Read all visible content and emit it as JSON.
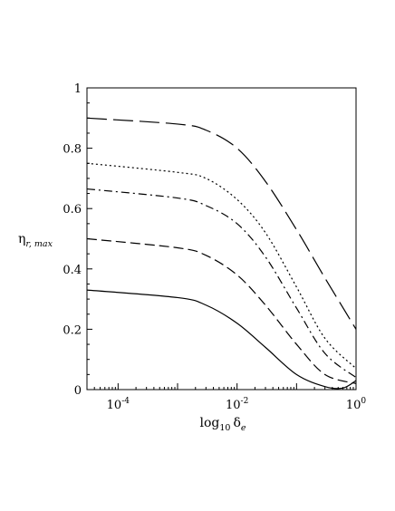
{
  "chart_data": {
    "type": "line",
    "xlabel": "log10 δe",
    "xlabel_parts": {
      "base": "log",
      "base_sub": "10",
      "symbol": "δ",
      "symbol_sub": "e"
    },
    "ylabel": "ηr, max",
    "ylabel_parts": {
      "symbol": "η",
      "sub": "r, max"
    },
    "x_scale": "log",
    "xlim": [
      3e-05,
      1.0
    ],
    "ylim": [
      0,
      1
    ],
    "x_ticks": [
      {
        "value": 0.0001,
        "base": "10",
        "exp": "-4"
      },
      {
        "value": 0.01,
        "base": "10",
        "exp": "-2"
      },
      {
        "value": 1,
        "base": "10",
        "exp": "0"
      }
    ],
    "y_ticks": [
      "0",
      "0.2",
      "0.4",
      "0.6",
      "0.8",
      "1"
    ],
    "grid": false,
    "legend": "none",
    "series": [
      {
        "style": "long-dash",
        "x": [
          3e-05,
          0.001,
          0.003,
          0.01,
          0.03,
          0.1,
          0.3,
          1.0
        ],
        "y": [
          0.9,
          0.88,
          0.86,
          0.8,
          0.69,
          0.53,
          0.37,
          0.2
        ]
      },
      {
        "style": "dotted",
        "x": [
          3e-05,
          0.001,
          0.003,
          0.01,
          0.03,
          0.1,
          0.3,
          1.0
        ],
        "y": [
          0.75,
          0.72,
          0.7,
          0.63,
          0.52,
          0.34,
          0.17,
          0.07
        ]
      },
      {
        "style": "dash-dot",
        "x": [
          3e-05,
          0.001,
          0.003,
          0.01,
          0.03,
          0.1,
          0.3,
          1.0
        ],
        "y": [
          0.665,
          0.635,
          0.61,
          0.55,
          0.44,
          0.27,
          0.12,
          0.04
        ]
      },
      {
        "style": "dashed",
        "x": [
          3e-05,
          0.001,
          0.003,
          0.01,
          0.03,
          0.1,
          0.3,
          1.0
        ],
        "y": [
          0.5,
          0.47,
          0.445,
          0.38,
          0.28,
          0.15,
          0.05,
          0.02
        ]
      },
      {
        "style": "solid",
        "x": [
          3e-05,
          0.001,
          0.003,
          0.01,
          0.03,
          0.1,
          0.3,
          0.6,
          1.0
        ],
        "y": [
          0.33,
          0.305,
          0.28,
          0.22,
          0.14,
          0.05,
          0.01,
          0.005,
          0.03
        ]
      }
    ]
  }
}
